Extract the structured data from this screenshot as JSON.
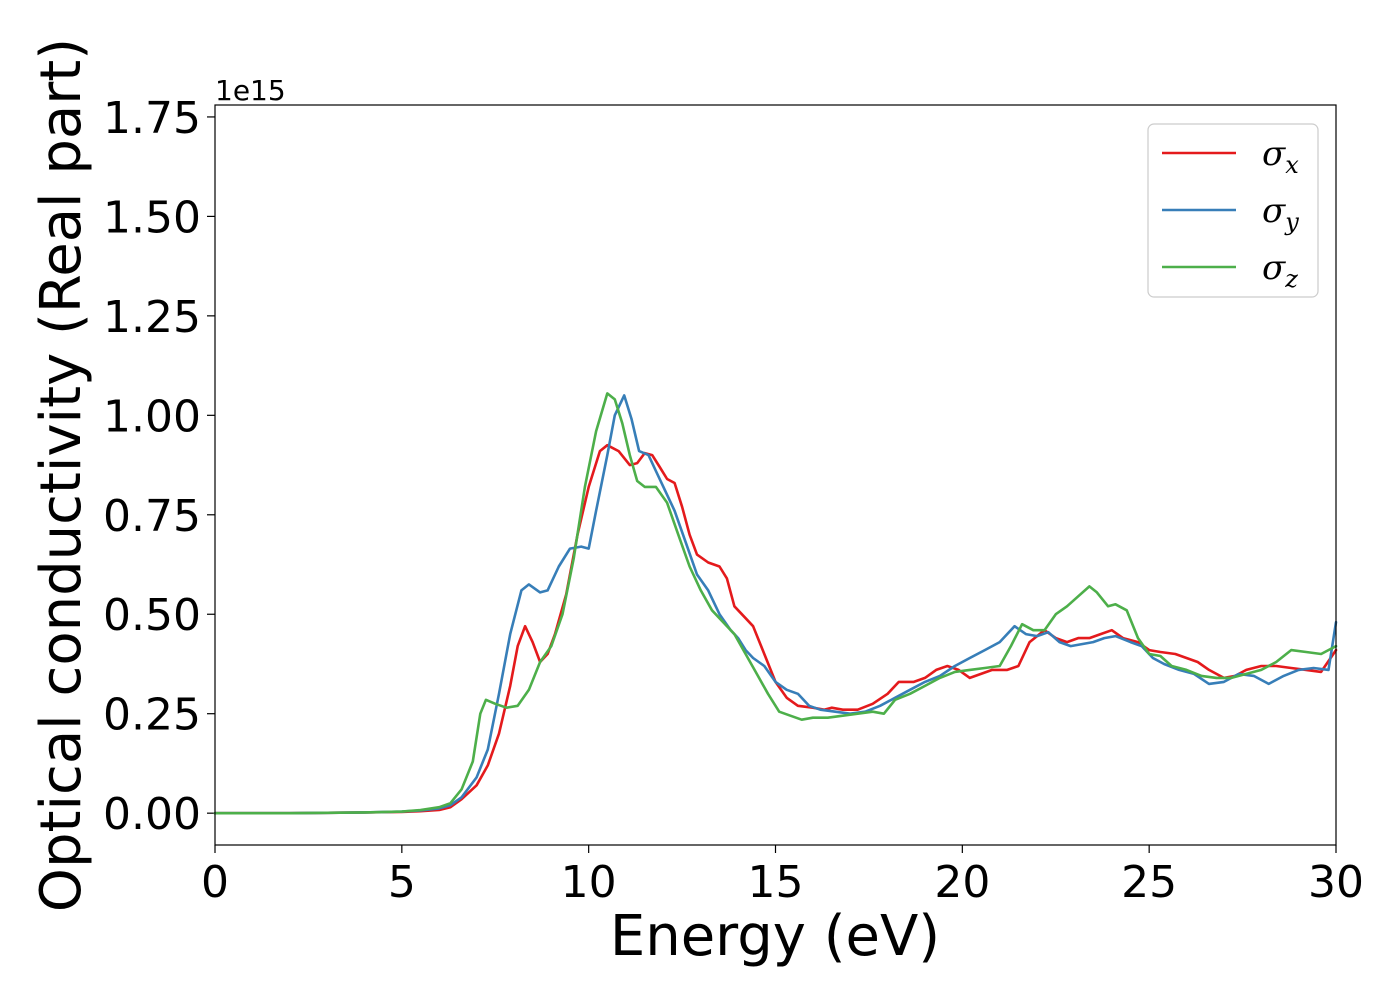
{
  "chart_data": {
    "type": "line",
    "xlabel": "Energy (eV)",
    "ylabel": "Optical conductivity (Real part)",
    "y_offset_label": "1e15",
    "xlim": [
      0,
      30
    ],
    "ylim": [
      -0.08,
      1.78
    ],
    "x_ticks": [
      0,
      5,
      10,
      15,
      20,
      25,
      30
    ],
    "x_tick_labels": [
      "0",
      "5",
      "10",
      "15",
      "20",
      "25",
      "30"
    ],
    "y_ticks": [
      0.0,
      0.25,
      0.5,
      0.75,
      1.0,
      1.25,
      1.5,
      1.75
    ],
    "y_tick_labels": [
      "0.00",
      "0.25",
      "0.50",
      "0.75",
      "1.00",
      "1.25",
      "1.50",
      "1.75"
    ],
    "grid": false,
    "legend_position": "top-right",
    "series": [
      {
        "name": "σ",
        "subscript": "x",
        "color": "#e41a1c",
        "points": [
          [
            0,
            0
          ],
          [
            2,
            0
          ],
          [
            4,
            0.002
          ],
          [
            5,
            0.003
          ],
          [
            5.5,
            0.005
          ],
          [
            6,
            0.008
          ],
          [
            6.3,
            0.015
          ],
          [
            6.6,
            0.035
          ],
          [
            7,
            0.07
          ],
          [
            7.3,
            0.12
          ],
          [
            7.6,
            0.2
          ],
          [
            7.9,
            0.32
          ],
          [
            8.1,
            0.42
          ],
          [
            8.3,
            0.47
          ],
          [
            8.5,
            0.43
          ],
          [
            8.7,
            0.38
          ],
          [
            8.9,
            0.4
          ],
          [
            9.1,
            0.45
          ],
          [
            9.4,
            0.55
          ],
          [
            9.7,
            0.7
          ],
          [
            10,
            0.82
          ],
          [
            10.3,
            0.91
          ],
          [
            10.5,
            0.925
          ],
          [
            10.8,
            0.91
          ],
          [
            11.1,
            0.875
          ],
          [
            11.3,
            0.88
          ],
          [
            11.5,
            0.905
          ],
          [
            11.7,
            0.9
          ],
          [
            11.9,
            0.87
          ],
          [
            12.1,
            0.84
          ],
          [
            12.3,
            0.83
          ],
          [
            12.5,
            0.77
          ],
          [
            12.7,
            0.7
          ],
          [
            12.9,
            0.65
          ],
          [
            13.2,
            0.63
          ],
          [
            13.5,
            0.62
          ],
          [
            13.7,
            0.59
          ],
          [
            13.9,
            0.52
          ],
          [
            14.2,
            0.49
          ],
          [
            14.4,
            0.47
          ],
          [
            14.7,
            0.4
          ],
          [
            15,
            0.33
          ],
          [
            15.3,
            0.29
          ],
          [
            15.6,
            0.27
          ],
          [
            16,
            0.265
          ],
          [
            16.3,
            0.26
          ],
          [
            16.5,
            0.265
          ],
          [
            16.8,
            0.26
          ],
          [
            17.2,
            0.26
          ],
          [
            17.6,
            0.275
          ],
          [
            18,
            0.3
          ],
          [
            18.3,
            0.33
          ],
          [
            18.7,
            0.33
          ],
          [
            19,
            0.34
          ],
          [
            19.3,
            0.36
          ],
          [
            19.6,
            0.37
          ],
          [
            19.9,
            0.36
          ],
          [
            20.2,
            0.34
          ],
          [
            20.5,
            0.35
          ],
          [
            20.8,
            0.36
          ],
          [
            21.2,
            0.36
          ],
          [
            21.5,
            0.37
          ],
          [
            21.8,
            0.43
          ],
          [
            22.2,
            0.46
          ],
          [
            22.5,
            0.44
          ],
          [
            22.8,
            0.43
          ],
          [
            23.1,
            0.44
          ],
          [
            23.4,
            0.44
          ],
          [
            23.7,
            0.45
          ],
          [
            24,
            0.46
          ],
          [
            24.3,
            0.44
          ],
          [
            24.7,
            0.43
          ],
          [
            25,
            0.41
          ],
          [
            25.3,
            0.405
          ],
          [
            25.7,
            0.4
          ],
          [
            26,
            0.39
          ],
          [
            26.3,
            0.38
          ],
          [
            26.6,
            0.36
          ],
          [
            27,
            0.34
          ],
          [
            27.3,
            0.345
          ],
          [
            27.6,
            0.36
          ],
          [
            28,
            0.37
          ],
          [
            28.4,
            0.37
          ],
          [
            28.8,
            0.365
          ],
          [
            29.2,
            0.36
          ],
          [
            29.6,
            0.355
          ],
          [
            30,
            0.41
          ]
        ]
      },
      {
        "name": "σ",
        "subscript": "y",
        "color": "#377eb8",
        "points": [
          [
            0,
            0
          ],
          [
            2,
            0
          ],
          [
            4,
            0.002
          ],
          [
            5,
            0.004
          ],
          [
            5.5,
            0.007
          ],
          [
            6,
            0.012
          ],
          [
            6.3,
            0.02
          ],
          [
            6.6,
            0.04
          ],
          [
            7,
            0.09
          ],
          [
            7.3,
            0.16
          ],
          [
            7.6,
            0.3
          ],
          [
            7.9,
            0.45
          ],
          [
            8.2,
            0.56
          ],
          [
            8.4,
            0.575
          ],
          [
            8.7,
            0.555
          ],
          [
            8.9,
            0.56
          ],
          [
            9.2,
            0.62
          ],
          [
            9.5,
            0.665
          ],
          [
            9.8,
            0.67
          ],
          [
            10,
            0.665
          ],
          [
            10.2,
            0.76
          ],
          [
            10.5,
            0.9
          ],
          [
            10.7,
            1.0
          ],
          [
            10.95,
            1.05
          ],
          [
            11.15,
            0.99
          ],
          [
            11.35,
            0.91
          ],
          [
            11.6,
            0.9
          ],
          [
            11.8,
            0.86
          ],
          [
            12,
            0.82
          ],
          [
            12.3,
            0.76
          ],
          [
            12.6,
            0.68
          ],
          [
            12.9,
            0.6
          ],
          [
            13.2,
            0.56
          ],
          [
            13.5,
            0.5
          ],
          [
            13.8,
            0.46
          ],
          [
            14,
            0.44
          ],
          [
            14.2,
            0.41
          ],
          [
            14.4,
            0.39
          ],
          [
            14.7,
            0.37
          ],
          [
            15,
            0.33
          ],
          [
            15.3,
            0.31
          ],
          [
            15.6,
            0.3
          ],
          [
            15.9,
            0.27
          ],
          [
            16.2,
            0.26
          ],
          [
            16.6,
            0.255
          ],
          [
            17,
            0.25
          ],
          [
            17.4,
            0.255
          ],
          [
            17.8,
            0.27
          ],
          [
            18.2,
            0.29
          ],
          [
            18.6,
            0.31
          ],
          [
            19,
            0.33
          ],
          [
            19.4,
            0.345
          ],
          [
            19.8,
            0.37
          ],
          [
            20.2,
            0.39
          ],
          [
            20.6,
            0.41
          ],
          [
            21,
            0.43
          ],
          [
            21.4,
            0.47
          ],
          [
            21.7,
            0.45
          ],
          [
            22,
            0.445
          ],
          [
            22.3,
            0.455
          ],
          [
            22.6,
            0.43
          ],
          [
            22.9,
            0.42
          ],
          [
            23.2,
            0.425
          ],
          [
            23.5,
            0.43
          ],
          [
            23.8,
            0.44
          ],
          [
            24.1,
            0.445
          ],
          [
            24.5,
            0.43
          ],
          [
            24.8,
            0.42
          ],
          [
            25.1,
            0.39
          ],
          [
            25.4,
            0.375
          ],
          [
            25.8,
            0.36
          ],
          [
            26.2,
            0.35
          ],
          [
            26.6,
            0.325
          ],
          [
            27,
            0.33
          ],
          [
            27.4,
            0.35
          ],
          [
            27.8,
            0.345
          ],
          [
            28.2,
            0.325
          ],
          [
            28.6,
            0.345
          ],
          [
            29,
            0.36
          ],
          [
            29.4,
            0.365
          ],
          [
            29.8,
            0.36
          ],
          [
            30,
            0.48
          ]
        ]
      },
      {
        "name": "σ",
        "subscript": "z",
        "color": "#4daf4a",
        "points": [
          [
            0,
            0
          ],
          [
            2,
            0
          ],
          [
            4,
            0.002
          ],
          [
            5,
            0.004
          ],
          [
            5.5,
            0.008
          ],
          [
            6,
            0.015
          ],
          [
            6.3,
            0.025
          ],
          [
            6.6,
            0.06
          ],
          [
            6.9,
            0.13
          ],
          [
            7.1,
            0.25
          ],
          [
            7.25,
            0.285
          ],
          [
            7.5,
            0.275
          ],
          [
            7.8,
            0.265
          ],
          [
            8.1,
            0.27
          ],
          [
            8.4,
            0.31
          ],
          [
            8.7,
            0.38
          ],
          [
            9,
            0.42
          ],
          [
            9.3,
            0.5
          ],
          [
            9.6,
            0.64
          ],
          [
            9.9,
            0.82
          ],
          [
            10.2,
            0.96
          ],
          [
            10.5,
            1.055
          ],
          [
            10.7,
            1.04
          ],
          [
            10.9,
            0.98
          ],
          [
            11.1,
            0.9
          ],
          [
            11.3,
            0.835
          ],
          [
            11.5,
            0.82
          ],
          [
            11.8,
            0.82
          ],
          [
            12.1,
            0.78
          ],
          [
            12.4,
            0.7
          ],
          [
            12.7,
            0.62
          ],
          [
            13,
            0.56
          ],
          [
            13.3,
            0.51
          ],
          [
            13.6,
            0.48
          ],
          [
            13.9,
            0.45
          ],
          [
            14.2,
            0.4
          ],
          [
            14.5,
            0.35
          ],
          [
            14.8,
            0.3
          ],
          [
            15.1,
            0.255
          ],
          [
            15.4,
            0.245
          ],
          [
            15.7,
            0.235
          ],
          [
            16,
            0.24
          ],
          [
            16.4,
            0.24
          ],
          [
            16.8,
            0.245
          ],
          [
            17.2,
            0.25
          ],
          [
            17.6,
            0.255
          ],
          [
            17.9,
            0.25
          ],
          [
            18.2,
            0.285
          ],
          [
            18.6,
            0.3
          ],
          [
            19,
            0.32
          ],
          [
            19.4,
            0.34
          ],
          [
            19.8,
            0.355
          ],
          [
            20.2,
            0.36
          ],
          [
            20.6,
            0.365
          ],
          [
            21,
            0.37
          ],
          [
            21.3,
            0.42
          ],
          [
            21.6,
            0.475
          ],
          [
            21.9,
            0.46
          ],
          [
            22.2,
            0.46
          ],
          [
            22.5,
            0.5
          ],
          [
            22.8,
            0.52
          ],
          [
            23.1,
            0.545
          ],
          [
            23.4,
            0.57
          ],
          [
            23.6,
            0.555
          ],
          [
            23.9,
            0.52
          ],
          [
            24.1,
            0.525
          ],
          [
            24.4,
            0.51
          ],
          [
            24.7,
            0.44
          ],
          [
            25,
            0.4
          ],
          [
            25.3,
            0.395
          ],
          [
            25.6,
            0.37
          ],
          [
            26,
            0.36
          ],
          [
            26.4,
            0.345
          ],
          [
            26.8,
            0.34
          ],
          [
            27.2,
            0.34
          ],
          [
            27.6,
            0.35
          ],
          [
            28,
            0.36
          ],
          [
            28.4,
            0.38
          ],
          [
            28.8,
            0.41
          ],
          [
            29.2,
            0.405
          ],
          [
            29.6,
            0.4
          ],
          [
            30,
            0.42
          ]
        ]
      }
    ]
  }
}
